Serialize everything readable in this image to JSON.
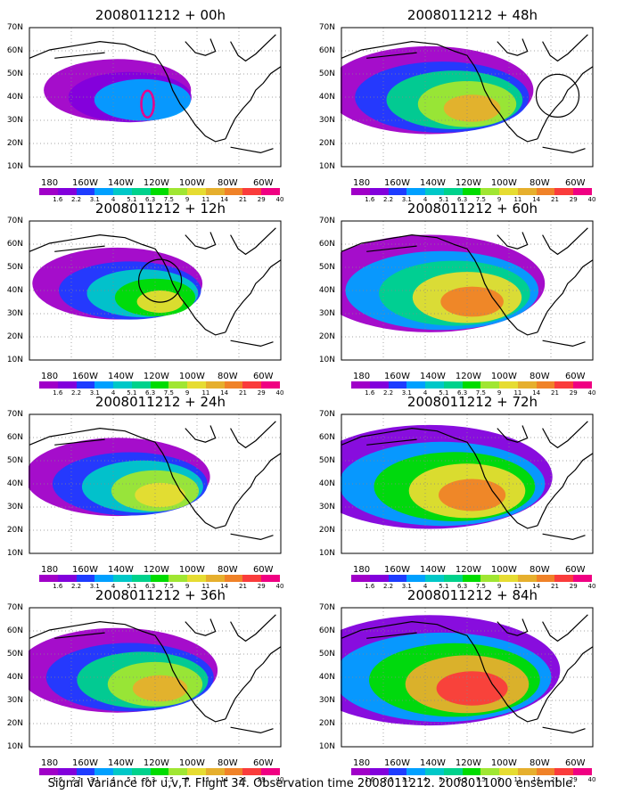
{
  "palette": [
    "#a000c8",
    "#8200dc",
    "#1e3cff",
    "#00a0ff",
    "#00c8c8",
    "#00d28c",
    "#00dc00",
    "#a0e632",
    "#e6dc32",
    "#e6af2d",
    "#f08228",
    "#fa3c3c",
    "#f00082"
  ],
  "colorbar_labels": [
    "1.6",
    "2.2",
    "3.1",
    "4",
    "5.1",
    "6.3",
    "7.5",
    "9",
    "11",
    "14",
    "21",
    "29",
    "40"
  ],
  "lat_labels": [
    "70N",
    "60N",
    "50N",
    "40N",
    "30N",
    "20N",
    "10N"
  ],
  "lon_labels": [
    "180",
    "160W",
    "140W",
    "120W",
    "100W",
    "80W",
    "60W"
  ],
  "panels": [
    {
      "title": "2008011212 + 00h",
      "intensity": 0.15,
      "mark": "magenta-loop"
    },
    {
      "title": "2008011212 + 48h",
      "intensity": 0.55,
      "mark": "circle-east"
    },
    {
      "title": "2008011212 + 12h",
      "intensity": 0.3,
      "mark": "circle-west"
    },
    {
      "title": "2008011212 + 60h",
      "intensity": 0.7,
      "mark": "none"
    },
    {
      "title": "2008011212 + 24h",
      "intensity": 0.4,
      "mark": "none"
    },
    {
      "title": "2008011212 + 72h",
      "intensity": 0.8,
      "mark": "none"
    },
    {
      "title": "2008011212 + 36h",
      "intensity": 0.5,
      "mark": "none"
    },
    {
      "title": "2008011212 + 84h",
      "intensity": 0.9,
      "mark": "none"
    }
  ],
  "footer": "Signal Variance for u,v,T. Flight 34. Observation time 2008011212. 2008011000 ensemble."
}
